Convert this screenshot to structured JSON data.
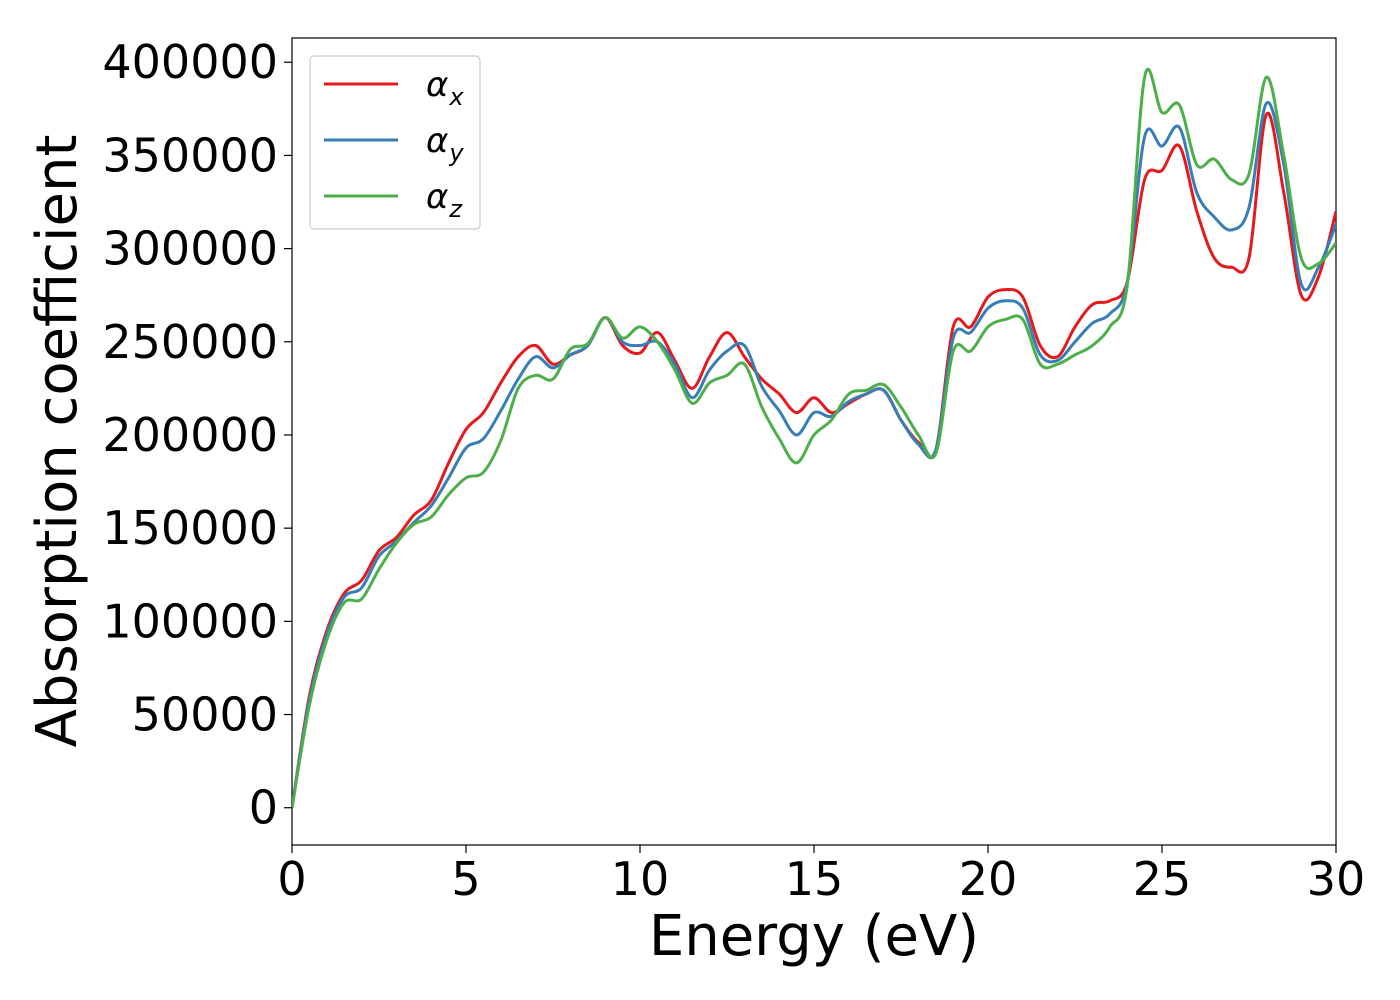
{
  "chart_data": {
    "type": "line",
    "title": "",
    "xlabel": "Energy (eV)",
    "ylabel": "Absorption coefficient",
    "xlim": [
      0,
      30
    ],
    "ylim": [
      -20000,
      413000
    ],
    "xticks": [
      0,
      5,
      10,
      15,
      20,
      25,
      30
    ],
    "xtick_labels": [
      "0",
      "5",
      "10",
      "15",
      "20",
      "25",
      "30"
    ],
    "yticks": [
      0,
      50000,
      100000,
      150000,
      200000,
      250000,
      300000,
      350000,
      400000
    ],
    "ytick_labels": [
      "0",
      "50000",
      "100000",
      "150000",
      "200000",
      "250000",
      "300000",
      "350000",
      "400000"
    ],
    "grid": false,
    "legend_position": "top-left",
    "x": [
      0,
      0.5,
      1,
      1.5,
      2,
      2.5,
      3,
      3.5,
      4,
      4.5,
      5,
      5.5,
      6,
      6.5,
      7,
      7.5,
      8,
      8.5,
      9,
      9.5,
      10,
      10.5,
      11,
      11.5,
      12,
      12.5,
      13,
      13.5,
      14,
      14.5,
      15,
      15.5,
      16,
      16.5,
      17,
      17.5,
      18,
      18.5,
      19,
      19.5,
      20,
      20.5,
      21,
      21.5,
      22,
      22.5,
      23,
      23.5,
      24,
      24.5,
      25,
      25.5,
      26,
      26.5,
      27,
      27.5,
      28,
      28.5,
      29,
      29.5,
      30
    ],
    "series": [
      {
        "name": "α",
        "subscript": "x",
        "color": "#e41a1c",
        "values": [
          0,
          60000,
          95000,
          115000,
          122000,
          138000,
          145000,
          157000,
          165000,
          185000,
          203000,
          212000,
          228000,
          242000,
          248000,
          238000,
          243000,
          248000,
          263000,
          248000,
          244000,
          255000,
          240000,
          225000,
          242000,
          255000,
          242000,
          230000,
          222000,
          212000,
          220000,
          212000,
          217000,
          222000,
          224000,
          208000,
          196000,
          192000,
          258000,
          258000,
          274000,
          278000,
          274000,
          248000,
          242000,
          258000,
          270000,
          272000,
          282000,
          337000,
          342000,
          355000,
          320000,
          295000,
          290000,
          295000,
          372000,
          330000,
          275000,
          285000,
          320000
        ]
      },
      {
        "name": "α",
        "subscript": "y",
        "color": "#377eb8",
        "values": [
          0,
          58000,
          93000,
          113000,
          118000,
          135000,
          143000,
          153000,
          162000,
          177000,
          193000,
          198000,
          213000,
          230000,
          242000,
          236000,
          243000,
          248000,
          263000,
          250000,
          248000,
          250000,
          238000,
          220000,
          235000,
          245000,
          248000,
          226000,
          213000,
          200000,
          212000,
          210000,
          218000,
          222000,
          224000,
          208000,
          195000,
          192000,
          252000,
          255000,
          268000,
          272000,
          268000,
          243000,
          240000,
          250000,
          260000,
          265000,
          282000,
          360000,
          355000,
          365000,
          330000,
          317000,
          310000,
          322000,
          378000,
          345000,
          281000,
          290000,
          313000
        ]
      },
      {
        "name": "α",
        "subscript": "z",
        "color": "#4daf4a",
        "values": [
          0,
          55000,
          90000,
          110000,
          112000,
          128000,
          142000,
          152000,
          156000,
          168000,
          177000,
          180000,
          197000,
          225000,
          232000,
          230000,
          246000,
          249000,
          263000,
          252000,
          258000,
          250000,
          235000,
          217000,
          228000,
          232000,
          238000,
          215000,
          198000,
          185000,
          200000,
          208000,
          222000,
          224000,
          227000,
          215000,
          200000,
          190000,
          245000,
          245000,
          258000,
          262000,
          262000,
          238000,
          238000,
          243000,
          248000,
          258000,
          280000,
          392000,
          373000,
          377000,
          345000,
          348000,
          337000,
          340000,
          392000,
          350000,
          295000,
          292000,
          303000
        ]
      }
    ]
  }
}
